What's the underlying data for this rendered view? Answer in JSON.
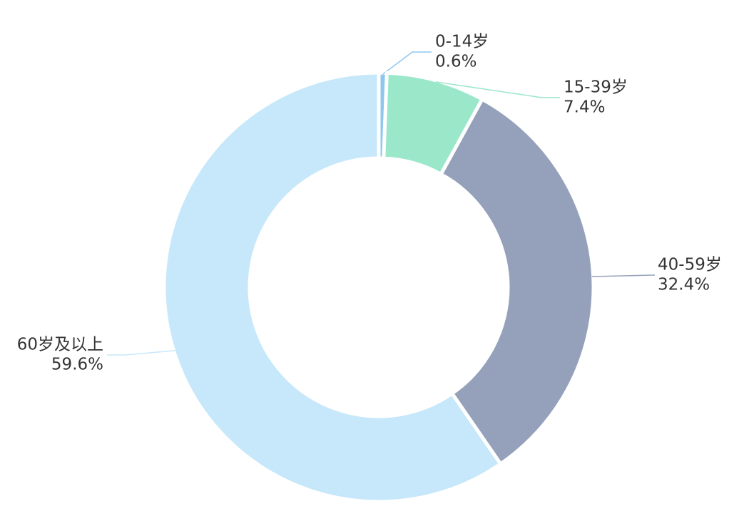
{
  "chart_data": {
    "type": "pie",
    "categories": [
      "0-14岁",
      "15-39岁",
      "40-59岁",
      "60岁及以上"
    ],
    "values": [
      0.6,
      7.4,
      32.4,
      59.6
    ],
    "value_labels": [
      "0.6%",
      "7.4%",
      "32.4%",
      "59.6%"
    ],
    "colors": [
      "#8ec6f0",
      "#9be7ca",
      "#95a1bb",
      "#c7e8fa"
    ]
  }
}
